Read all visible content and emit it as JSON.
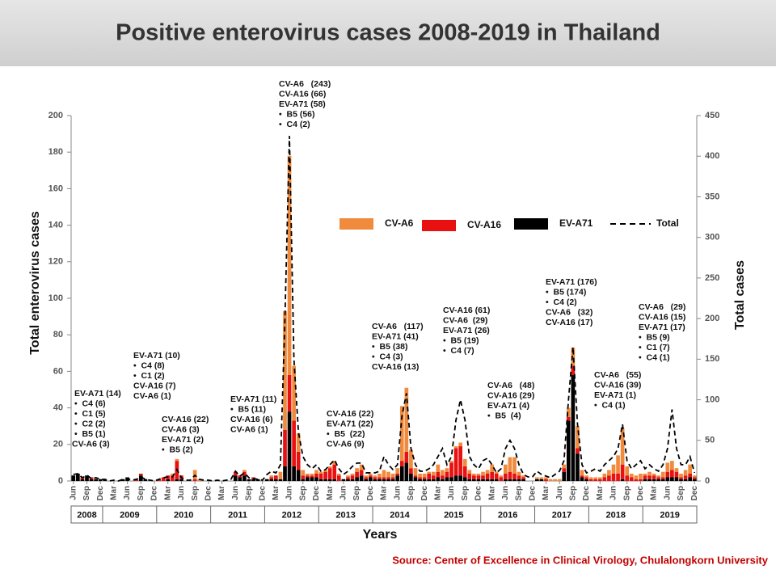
{
  "chart_data": {
    "type": "bar",
    "stacked": true,
    "title": "Positive enterovirus cases 2008-2019 in Thailand",
    "source": "Source: Center of Excellence in Clinical Virology, Chulalongkorn University",
    "xlabel": "Years",
    "ylabel": "Total enterovirus cases",
    "y2label": "Total cases",
    "ylim": [
      0,
      200
    ],
    "yticks": [
      0,
      20,
      40,
      60,
      80,
      100,
      120,
      140,
      160,
      180,
      200
    ],
    "y2lim": [
      0,
      450
    ],
    "y2ticks": [
      0,
      50,
      100,
      150,
      200,
      250,
      300,
      350,
      400,
      450
    ],
    "years": [
      "2008",
      "2009",
      "2010",
      "2011",
      "2012",
      "2013",
      "2014",
      "2015",
      "2016",
      "2017",
      "2018",
      "2019"
    ],
    "categories": [
      "Jun",
      null,
      null,
      "Sep",
      null,
      null,
      "Dec",
      null,
      null,
      "Mar",
      null,
      null,
      "Jun",
      null,
      null,
      "Sep",
      null,
      null,
      "Dec",
      null,
      null,
      "Mar",
      null,
      null,
      "Jun",
      null,
      null,
      "Sep",
      null,
      null,
      "Dec",
      null,
      null,
      "Mar",
      null,
      null,
      "Jun",
      null,
      null,
      "Sep",
      null,
      null,
      "Dec",
      null,
      null,
      "Mar",
      null,
      null,
      "Jun",
      null,
      null,
      "Sep",
      null,
      null,
      "Dec",
      null,
      null,
      "Mar",
      null,
      null,
      "Jun",
      null,
      null,
      "Sep",
      null,
      null,
      "Dec",
      null,
      null,
      "Mar",
      null,
      null,
      "Jun",
      null,
      null,
      "Sep",
      null,
      null,
      "Dec",
      null,
      null,
      "Mar",
      null,
      null,
      "Jun",
      null,
      null,
      "Sep",
      null,
      null,
      "Dec",
      null,
      null,
      "Mar",
      null,
      null,
      "Jun",
      null,
      null,
      "Sep",
      null,
      null,
      "Dec",
      null,
      null,
      "Mar",
      null,
      null,
      "Jun",
      null,
      null,
      "Sep",
      null,
      null,
      "Dec",
      null,
      null,
      "Mar",
      null,
      null,
      "Jun",
      null,
      null,
      "Sep",
      null,
      null,
      "Dec",
      null,
      null,
      "Mar",
      null,
      null,
      "Jun",
      null,
      null,
      "Sep",
      null,
      null,
      "Dec"
    ],
    "series": [
      {
        "name": "EV-A71",
        "color": "#000000",
        "values": [
          3,
          4,
          1,
          3,
          1,
          1,
          1,
          1,
          0,
          0,
          0,
          1,
          2,
          0,
          0,
          3,
          1,
          0,
          0,
          0,
          0,
          1,
          0,
          1,
          1,
          0,
          0,
          0,
          0,
          0,
          0,
          0,
          0,
          0,
          0,
          0,
          3,
          2,
          3,
          1,
          1,
          1,
          0,
          1,
          1,
          1,
          1,
          8,
          38,
          8,
          6,
          1,
          2,
          2,
          2,
          1,
          1,
          1,
          1,
          0,
          1,
          1,
          1,
          2,
          3,
          1,
          2,
          1,
          1,
          1,
          1,
          1,
          3,
          8,
          10,
          4,
          2,
          1,
          1,
          1,
          1,
          2,
          1,
          2,
          2,
          3,
          3,
          2,
          1,
          1,
          1,
          1,
          1,
          1,
          1,
          0,
          1,
          1,
          1,
          1,
          1,
          0,
          0,
          1,
          1,
          0,
          0,
          0,
          0,
          5,
          33,
          58,
          15,
          2,
          1,
          0,
          0,
          0,
          0,
          0,
          0,
          0,
          1,
          0,
          0,
          0,
          0,
          1,
          1,
          1,
          1,
          1,
          2,
          2,
          2,
          1,
          1,
          2,
          1
        ]
      },
      {
        "name": "CV-A16",
        "color": "#e81010",
        "values": [
          0,
          0,
          1,
          0,
          1,
          0,
          0,
          0,
          0,
          0,
          0,
          0,
          0,
          0,
          1,
          1,
          0,
          0,
          0,
          1,
          2,
          2,
          3,
          10,
          2,
          0,
          0,
          1,
          0,
          0,
          0,
          0,
          0,
          0,
          0,
          0,
          2,
          1,
          2,
          0,
          1,
          0,
          0,
          0,
          1,
          2,
          0,
          20,
          20,
          25,
          10,
          2,
          1,
          1,
          2,
          3,
          4,
          6,
          8,
          3,
          0,
          1,
          2,
          3,
          3,
          1,
          1,
          1,
          1,
          1,
          1,
          1,
          1,
          3,
          6,
          3,
          1,
          1,
          1,
          3,
          2,
          3,
          2,
          3,
          8,
          15,
          16,
          6,
          3,
          2,
          2,
          2,
          3,
          4,
          3,
          2,
          3,
          4,
          3,
          2,
          1,
          0,
          0,
          0,
          0,
          1,
          0,
          0,
          0,
          2,
          2,
          5,
          3,
          1,
          1,
          1,
          1,
          1,
          2,
          3,
          4,
          4,
          8,
          3,
          2,
          1,
          1,
          2,
          2,
          2,
          1,
          1,
          3,
          4,
          3,
          1,
          2,
          2,
          1
        ]
      },
      {
        "name": "CV-A6",
        "color": "#f08a3c",
        "values": [
          0,
          0,
          0,
          0,
          0,
          1,
          0,
          0,
          0,
          0,
          0,
          0,
          0,
          0,
          0,
          0,
          0,
          0,
          0,
          0,
          0,
          0,
          1,
          1,
          0,
          0,
          0,
          5,
          1,
          0,
          0,
          0,
          0,
          0,
          0,
          0,
          0,
          0,
          1,
          0,
          0,
          0,
          0,
          0,
          1,
          0,
          4,
          65,
          120,
          30,
          10,
          3,
          1,
          1,
          2,
          1,
          1,
          1,
          2,
          1,
          0,
          1,
          1,
          2,
          3,
          1,
          1,
          1,
          2,
          4,
          3,
          2,
          3,
          30,
          35,
          10,
          4,
          2,
          2,
          1,
          2,
          4,
          3,
          2,
          1,
          1,
          2,
          4,
          2,
          1,
          1,
          2,
          2,
          4,
          1,
          1,
          5,
          8,
          9,
          2,
          1,
          0,
          0,
          1,
          1,
          1,
          1,
          1,
          1,
          2,
          5,
          10,
          12,
          3,
          1,
          1,
          1,
          1,
          2,
          3,
          5,
          10,
          20,
          5,
          2,
          2,
          3,
          1,
          2,
          1,
          1,
          3,
          5,
          5,
          2,
          2,
          3,
          5,
          1
        ]
      },
      {
        "name": "Total",
        "color": "#000000",
        "axis": "y2",
        "dashed": true,
        "values": [
          8,
          9,
          4,
          7,
          3,
          4,
          2,
          2,
          0,
          1,
          0,
          2,
          3,
          1,
          2,
          5,
          2,
          1,
          0,
          2,
          4,
          5,
          5,
          14,
          4,
          1,
          1,
          7,
          2,
          1,
          1,
          0,
          1,
          0,
          1,
          2,
          12,
          6,
          10,
          4,
          3,
          2,
          1,
          8,
          12,
          10,
          20,
          200,
          425,
          150,
          60,
          30,
          20,
          15,
          20,
          12,
          14,
          20,
          26,
          15,
          8,
          12,
          18,
          22,
          22,
          10,
          10,
          10,
          12,
          30,
          20,
          14,
          20,
          80,
          108,
          40,
          20,
          12,
          12,
          15,
          20,
          30,
          40,
          20,
          30,
          75,
          100,
          75,
          30,
          20,
          15,
          25,
          28,
          20,
          10,
          15,
          40,
          50,
          40,
          20,
          8,
          5,
          5,
          12,
          8,
          6,
          4,
          8,
          12,
          25,
          100,
          165,
          70,
          20,
          10,
          12,
          15,
          12,
          20,
          25,
          30,
          40,
          70,
          25,
          15,
          20,
          25,
          15,
          20,
          15,
          12,
          20,
          40,
          88,
          40,
          20,
          20,
          30,
          10
        ]
      }
    ],
    "annotations": [
      [
        "EV-A71 (14)",
        "•  C4 (6)",
        "•  C1 (5)",
        "•  C2 (2)",
        "•  B5 (1)",
        "CV-A6 (3)"
      ],
      [
        "EV-A71 (10)",
        "•  C4 (8)",
        "•  C1 (2)",
        "CV-A16 (7)",
        "CV-A6 (1)"
      ],
      [
        "CV-A16 (22)",
        "CV-A6 (3)",
        "EV-A71 (2)",
        "•  B5 (2)"
      ],
      [
        "EV-A71 (11)",
        "•  B5 (11)",
        "CV-A16 (6)",
        "CV-A6 (1)"
      ],
      [
        "CV-A6   (243)",
        "CV-A16 (66)",
        "EV-A71 (58)",
        "•  B5 (56)",
        "•  C4 (2)"
      ],
      [
        "CV-A16 (22)",
        "EV-A71 (22)",
        "•  B5  (22)",
        "CV-A6 (9)"
      ],
      [
        "CV-A6   (117)",
        "EV-A71 (41)",
        "•  B5 (38)",
        "•  C4 (3)",
        "CV-A16 (13)"
      ],
      [
        "CV-A16 (61)",
        "CV-A6  (29)",
        "EV-A71 (26)",
        "•  B5 (19)",
        "•  C4 (7)"
      ],
      [
        "CV-A6   (48)",
        "CV-A16 (29)",
        "EV-A71 (4)",
        "•  B5  (4)"
      ],
      [
        "EV-A71 (176)",
        "•  B5 (174)",
        "•  C4 (2)",
        "CV-A6   (32)",
        "CV-A16 (17)"
      ],
      [
        "CV-A6   (55)",
        "CV-A16 (39)",
        "EV-A71 (1)",
        "•  C4 (1)"
      ],
      [
        "CV-A6   (29)",
        "CV-A16 (15)",
        "EV-A71 (17)",
        "•  B5 (9)",
        "•  C1 (7)",
        "•  C4 (1)"
      ]
    ]
  }
}
